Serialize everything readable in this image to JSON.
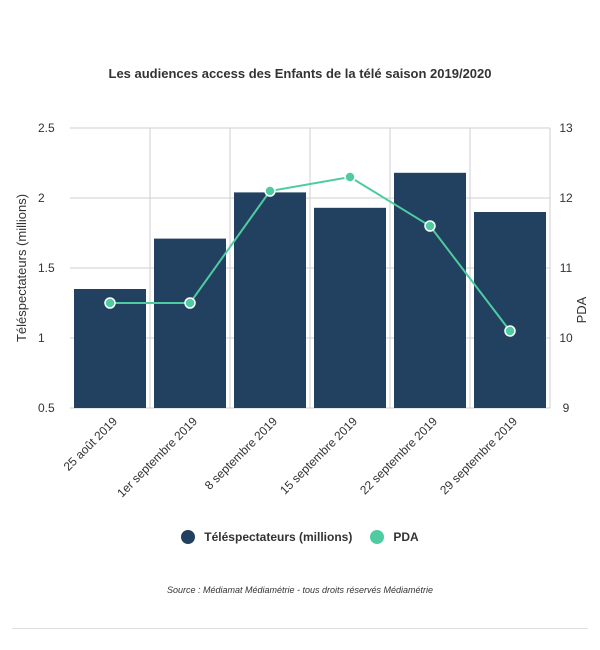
{
  "chart_data": {
    "type": "bar",
    "title": "Les audiences access des Enfants de la télé saison 2019/2020",
    "categories": [
      "25 août 2019",
      "1er septembre 2019",
      "8 septembre 2019",
      "15 septembre 2019",
      "22 septembre 2019",
      "29 septembre 2019"
    ],
    "series": [
      {
        "name": "Téléspectateurs (millions)",
        "type": "bar",
        "axis": "left",
        "color": "#22405f",
        "values": [
          1.35,
          1.71,
          2.04,
          1.93,
          2.18,
          1.9
        ]
      },
      {
        "name": "PDA",
        "type": "line",
        "axis": "right",
        "color": "#4ecba0",
        "values": [
          10.5,
          10.5,
          12.1,
          12.3,
          11.6,
          10.1
        ]
      }
    ],
    "ylabel": "Téléspectateurs (millions)",
    "ylim": [
      0.5,
      2.5
    ],
    "yticks": [
      "0.5",
      "1",
      "1.5",
      "2",
      "2.5"
    ],
    "y2label": "PDA",
    "y2lim": [
      9,
      13
    ],
    "y2ticks": [
      "9",
      "10",
      "11",
      "12",
      "13"
    ],
    "legend_position": "bottom",
    "grid": true,
    "source": "Source : Médiamat Médiamétrie - tous droits réservés Médiamétrie"
  }
}
